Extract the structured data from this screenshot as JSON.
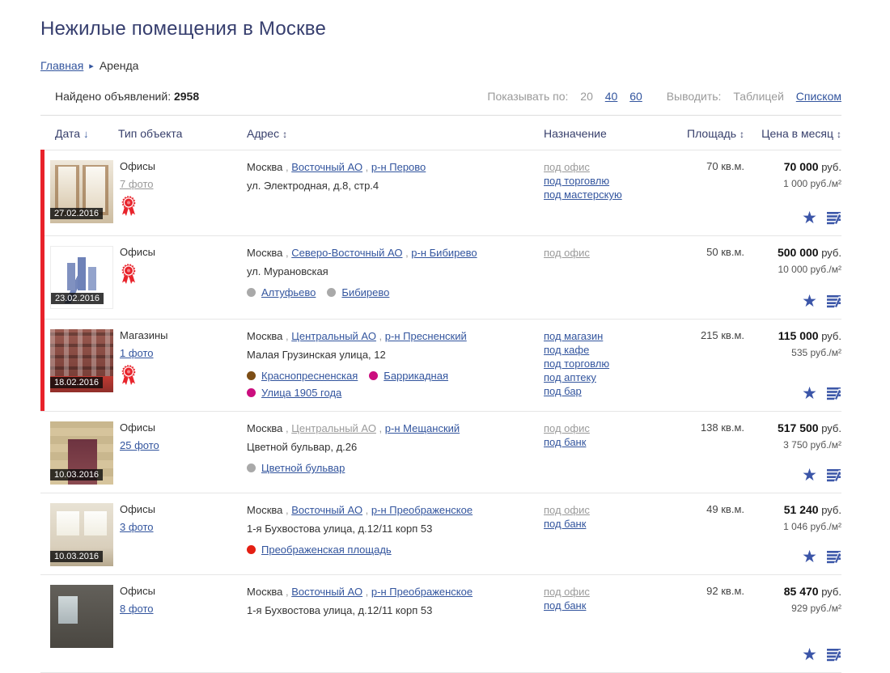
{
  "page": {
    "title": "Нежилые помещения в Москве"
  },
  "breadcrumb": {
    "home": "Главная",
    "arrow": "▸",
    "current": "Аренда"
  },
  "toolbar": {
    "found_label": "Найдено объявлений:",
    "found_count": "2958",
    "per_page_label": "Показывать по:",
    "per_page_options": [
      {
        "label": "20",
        "active": true
      },
      {
        "label": "40",
        "active": false
      },
      {
        "label": "60",
        "active": false
      }
    ],
    "view_label": "Выводить:",
    "view_options": [
      {
        "label": "Таблицей",
        "active": true
      },
      {
        "label": "Списком",
        "active": false
      }
    ]
  },
  "table": {
    "headers": {
      "date": "Дата",
      "type": "Тип объекта",
      "address": "Адрес",
      "purpose": "Назначение",
      "area": "Площадь",
      "price": "Цена в месяц"
    },
    "icons": {
      "sort_down": "↓",
      "sort_both": "↕",
      "star": "★"
    }
  },
  "colors": {
    "link_blue": "#33559e",
    "visited_gray": "#9a9a9a",
    "premium_bar_red": "#e8222a",
    "award_red": "#e8232b",
    "star_blue": "#3b55a8"
  },
  "listings": [
    {
      "date": "27.02.2016",
      "type": "Офисы",
      "photos": "7 фото",
      "photos_visited": true,
      "premium": true,
      "award": true,
      "city": "Москва",
      "district": "Восточный АО",
      "district_visited": false,
      "district_area": "р-н Перово",
      "street": "ул. Электродная, д.8, стр.4",
      "metro": [],
      "purposes": [
        {
          "label": "под офис",
          "visited": true
        },
        {
          "label": "под торговлю",
          "visited": false
        },
        {
          "label": "под мастерскую",
          "visited": false
        }
      ],
      "area": "70 кв.м.",
      "price": "70 000",
      "price_currency": "руб.",
      "price_per": "1 000 руб./м²"
    },
    {
      "date": "23.02.2016",
      "type": "Офисы",
      "photos": null,
      "photos_visited": false,
      "premium": true,
      "award": true,
      "city": "Москва",
      "district": "Северо-Восточный АО",
      "district_visited": false,
      "district_area": "р-н Бибирево",
      "street": "ул. Мурановская",
      "metro": [
        {
          "name": "Алтуфьево",
          "color": "#a9a9a9"
        },
        {
          "name": "Бибирево",
          "color": "#a9a9a9"
        }
      ],
      "purposes": [
        {
          "label": "под офис",
          "visited": true
        }
      ],
      "area": "50 кв.м.",
      "price": "500 000",
      "price_currency": "руб.",
      "price_per": "10 000 руб./м²"
    },
    {
      "date": "18.02.2016",
      "type": "Магазины",
      "photos": "1 фото",
      "photos_visited": false,
      "premium": true,
      "award": true,
      "city": "Москва",
      "district": "Центральный АО",
      "district_visited": false,
      "district_area": "р-н Пресненский",
      "street": "Малая Грузинская улица, 12",
      "metro": [
        {
          "name": "Краснопресненская",
          "color": "#7d4e16"
        },
        {
          "name": "Баррикадная",
          "color": "#cb0e7e"
        },
        {
          "name": "Улица 1905 года",
          "color": "#cb0e7e"
        }
      ],
      "purposes": [
        {
          "label": "под магазин",
          "visited": false
        },
        {
          "label": "под кафе",
          "visited": false
        },
        {
          "label": "под торговлю",
          "visited": false
        },
        {
          "label": "под аптеку",
          "visited": false
        },
        {
          "label": "под бар",
          "visited": false
        }
      ],
      "area": "215 кв.м.",
      "price": "115 000",
      "price_currency": "руб.",
      "price_per": "535 руб./м²"
    },
    {
      "date": "10.03.2016",
      "type": "Офисы",
      "photos": "25 фото",
      "photos_visited": false,
      "premium": false,
      "award": false,
      "city": "Москва",
      "district": "Центральный АО",
      "district_visited": true,
      "district_area": "р-н Мещанский",
      "street": "Цветной бульвар, д.26",
      "metro": [
        {
          "name": "Цветной бульвар",
          "color": "#a9a9a9"
        }
      ],
      "purposes": [
        {
          "label": "под офис",
          "visited": true
        },
        {
          "label": "под банк",
          "visited": false
        }
      ],
      "area": "138 кв.м.",
      "price": "517 500",
      "price_currency": "руб.",
      "price_per": "3 750 руб./м²"
    },
    {
      "date": "10.03.2016",
      "type": "Офисы",
      "photos": "3 фото",
      "photos_visited": false,
      "premium": false,
      "award": false,
      "city": "Москва",
      "district": "Восточный АО",
      "district_visited": false,
      "district_area": "р-н Преображенское",
      "street": "1-я Бухвостова улица, д.12/11 корп 53",
      "metro": [
        {
          "name": "Преображенская площадь",
          "color": "#e41f13"
        }
      ],
      "purposes": [
        {
          "label": "под офис",
          "visited": true
        },
        {
          "label": "под банк",
          "visited": false
        }
      ],
      "area": "49 кв.м.",
      "price": "51 240",
      "price_currency": "руб.",
      "price_per": "1 046 руб./м²"
    },
    {
      "date": "",
      "type": "Офисы",
      "photos": "8 фото",
      "photos_visited": false,
      "premium": false,
      "award": false,
      "city": "Москва",
      "district": "Восточный АО",
      "district_visited": false,
      "district_area": "р-н Преображенское",
      "street": "1-я Бухвостова улица, д.12/11 корп 53",
      "metro": [],
      "purposes": [
        {
          "label": "под офис",
          "visited": true
        },
        {
          "label": "под банк",
          "visited": false
        }
      ],
      "area": "92 кв.м.",
      "price": "85 470",
      "price_currency": "руб.",
      "price_per": "929 руб./м²"
    }
  ]
}
